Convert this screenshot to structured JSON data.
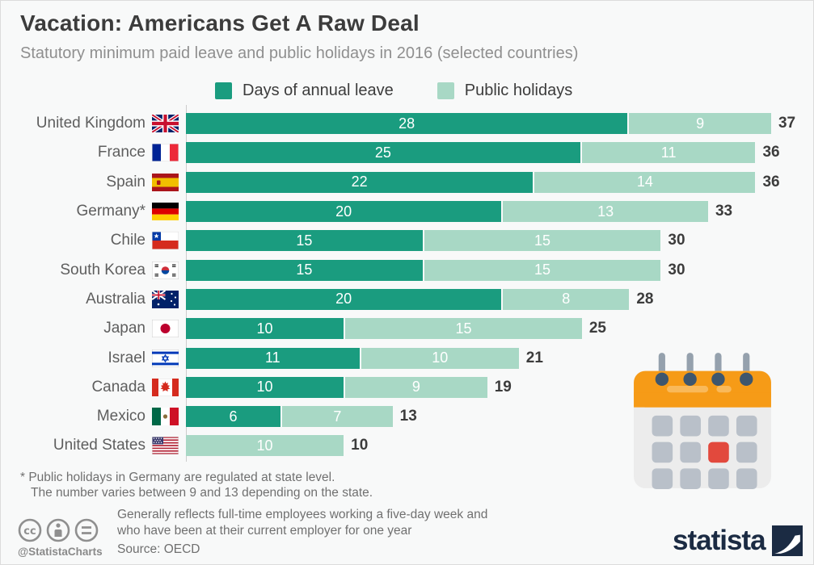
{
  "header": {
    "title": "Vacation: Americans Get A Raw Deal",
    "subtitle": "Statutory minimum paid leave and public holidays in 2016 (selected countries)"
  },
  "legend": [
    {
      "label": "Days of annual leave",
      "color": "#1a9c7f"
    },
    {
      "label": "Public holidays",
      "color": "#a8d8c5"
    }
  ],
  "chart_data": {
    "type": "bar",
    "orientation": "horizontal-stacked",
    "unit": "days",
    "x_max": 37,
    "grid": false,
    "legend_position": "top",
    "categories": [
      "United Kingdom",
      "France",
      "Spain",
      "Germany*",
      "Chile",
      "South Korea",
      "Australia",
      "Japan",
      "Israel",
      "Canada",
      "Mexico",
      "United States"
    ],
    "flags": [
      "uk",
      "france",
      "spain",
      "germany",
      "chile",
      "southkorea",
      "australia",
      "japan",
      "israel",
      "canada",
      "mexico",
      "us"
    ],
    "series": [
      {
        "name": "Days of annual leave",
        "color": "#1a9c7f",
        "values": [
          28,
          25,
          22,
          20,
          15,
          15,
          20,
          10,
          11,
          10,
          6,
          0
        ]
      },
      {
        "name": "Public holidays",
        "color": "#a8d8c5",
        "values": [
          9,
          11,
          14,
          13,
          15,
          15,
          8,
          15,
          10,
          9,
          7,
          10
        ]
      }
    ],
    "totals": [
      37,
      36,
      36,
      33,
      30,
      30,
      28,
      25,
      21,
      19,
      13,
      10
    ]
  },
  "footnote": {
    "line1": "* Public holidays in Germany are regulated at state level.",
    "line2": "The number varies between 9 and 13 depending on the state."
  },
  "footer": {
    "license_icons": [
      "cc-icon",
      "attribution-icon",
      "no-derivatives-icon"
    ],
    "handle": "@StatistaCharts",
    "note_line1": "Generally reflects full-time employees working a five-day week and",
    "note_line2": "who have been at their current employer for one year",
    "source": "Source: OECD",
    "brand": "statista"
  }
}
